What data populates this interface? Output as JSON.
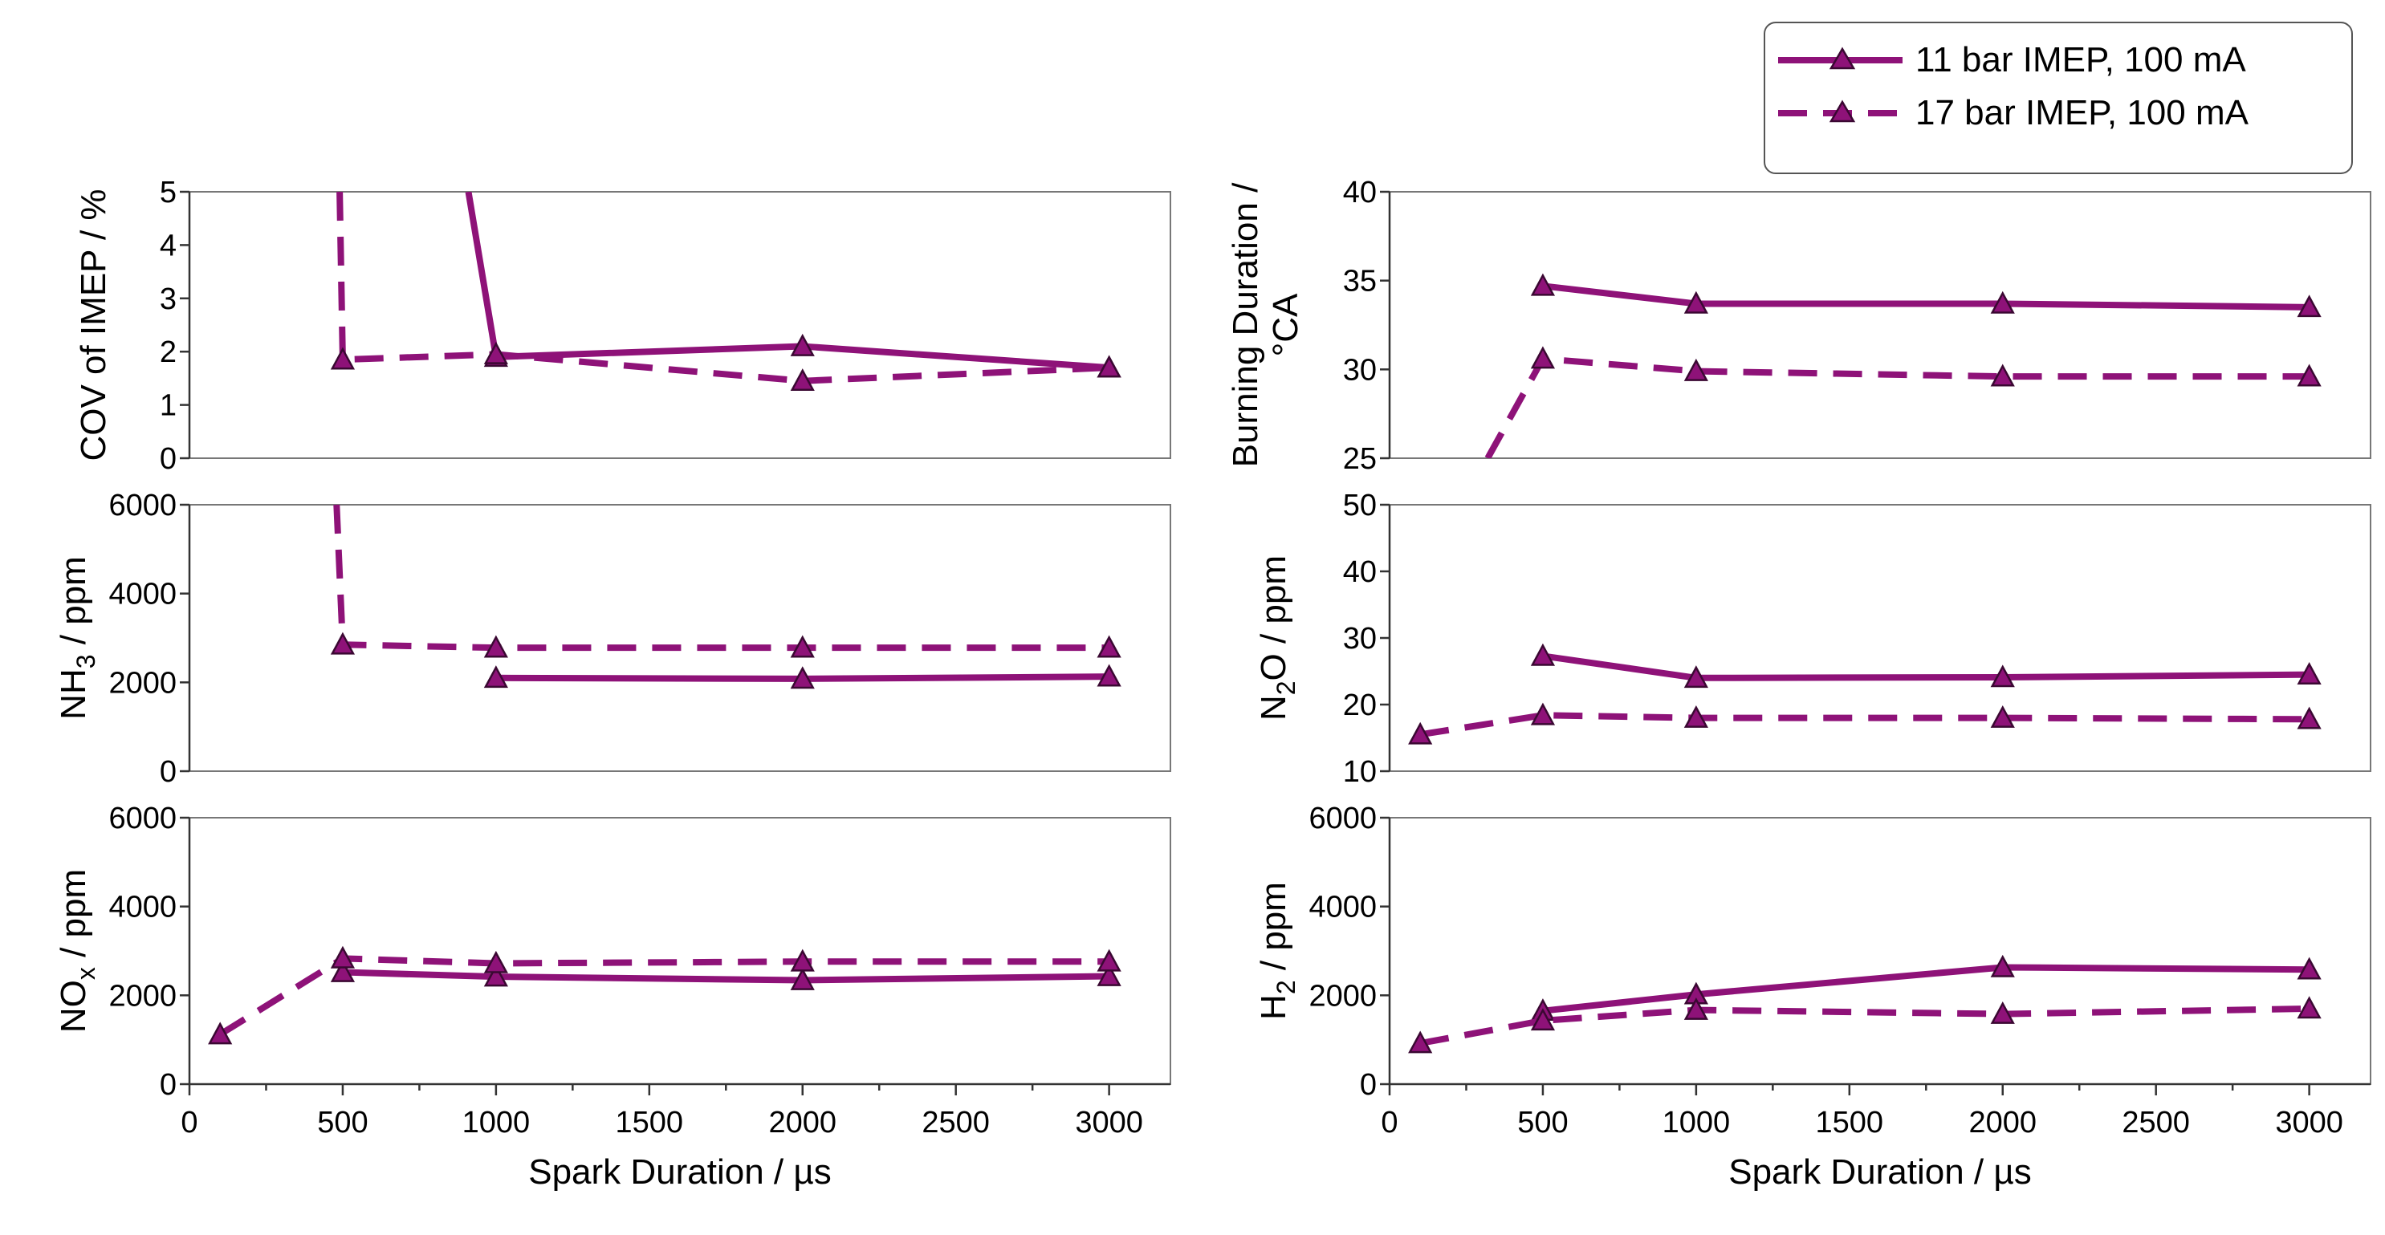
{
  "legend": {
    "entries": [
      {
        "label": "11 bar IMEP, 100 mA",
        "style": "solid"
      },
      {
        "label": "17 bar IMEP, 100 mA",
        "style": "dashed"
      }
    ]
  },
  "colors": {
    "series": "#8e1278",
    "marker_fill": "#8e1278",
    "marker_edge": "#3a0832"
  },
  "chart_data": [
    {
      "id": "cov",
      "type": "line",
      "column": "left",
      "row": 0,
      "ylabel": "COV of IMEP / %",
      "xlabel": "",
      "xlim": [
        0,
        3200
      ],
      "ylim": [
        0,
        5
      ],
      "yticks": [
        "0",
        "1",
        "2",
        "3",
        "4",
        "5"
      ],
      "ytick_values": [
        0,
        1,
        2,
        3,
        4,
        5
      ],
      "xticks": [],
      "xtick_values": [],
      "series": [
        {
          "name": "11 bar IMEP, 100 mA",
          "style": "solid",
          "x": [
            910,
            1000,
            2000,
            3000
          ],
          "y": [
            5.0,
            1.9,
            2.1,
            1.7
          ],
          "markers": [
            false,
            true,
            true,
            true
          ]
        },
        {
          "name": "17 bar IMEP, 100 mA",
          "style": "dashed",
          "x": [
            490,
            500,
            1000,
            2000,
            3000
          ],
          "y": [
            5.0,
            1.85,
            1.95,
            1.45,
            1.7
          ],
          "markers": [
            false,
            true,
            true,
            true,
            true
          ]
        }
      ]
    },
    {
      "id": "nh3",
      "type": "line",
      "column": "left",
      "row": 1,
      "ylabel": "NH3 / ppm",
      "ylabel_main": "NH",
      "ylabel_sub": "3",
      "ylabel_tail": " / ppm",
      "xlabel": "",
      "xlim": [
        0,
        3200
      ],
      "ylim": [
        0,
        6000
      ],
      "yticks": [
        "0",
        "2000",
        "4000",
        "6000"
      ],
      "ytick_values": [
        0,
        2000,
        4000,
        6000
      ],
      "xticks": [],
      "xtick_values": [],
      "series": [
        {
          "name": "11 bar IMEP, 100 mA",
          "style": "solid",
          "x": [
            1000,
            2000,
            3000
          ],
          "y": [
            2100,
            2080,
            2130
          ],
          "markers": [
            true,
            true,
            true
          ]
        },
        {
          "name": "17 bar IMEP, 100 mA",
          "style": "dashed",
          "x": [
            480,
            500,
            1000,
            2000,
            3000
          ],
          "y": [
            6000,
            2850,
            2780,
            2780,
            2780
          ],
          "markers": [
            false,
            true,
            true,
            true,
            true
          ]
        }
      ]
    },
    {
      "id": "nox",
      "type": "line",
      "column": "left",
      "row": 2,
      "ylabel": "NOx / ppm",
      "ylabel_main": "NO",
      "ylabel_sub": "x",
      "ylabel_tail": " / ppm",
      "xlabel": "Spark Duration / µs",
      "xlim": [
        0,
        3200
      ],
      "ylim": [
        0,
        6000
      ],
      "yticks": [
        "0",
        "2000",
        "4000",
        "6000"
      ],
      "ytick_values": [
        0,
        2000,
        4000,
        6000
      ],
      "xticks": [
        "0",
        "500",
        "1000",
        "1500",
        "2000",
        "2500",
        "3000"
      ],
      "xtick_values": [
        0,
        500,
        1000,
        1500,
        2000,
        2500,
        3000
      ],
      "series": [
        {
          "name": "11 bar IMEP, 100 mA",
          "style": "solid",
          "x": [
            500,
            1000,
            2000,
            3000
          ],
          "y": [
            2520,
            2420,
            2340,
            2430
          ],
          "markers": [
            true,
            true,
            true,
            true
          ]
        },
        {
          "name": "17 bar IMEP, 100 mA",
          "style": "dashed",
          "x": [
            100,
            500,
            1000,
            2000,
            3000
          ],
          "y": [
            1120,
            2830,
            2720,
            2760,
            2760
          ],
          "markers": [
            true,
            true,
            true,
            true,
            true
          ]
        }
      ]
    },
    {
      "id": "burn",
      "type": "line",
      "column": "right",
      "row": 0,
      "ylabel_lines": [
        "Burning Duration /",
        "°CA"
      ],
      "xlabel": "",
      "xlim": [
        0,
        3200
      ],
      "ylim": [
        25,
        40
      ],
      "yticks": [
        "25",
        "30",
        "35",
        "40"
      ],
      "ytick_values": [
        25,
        30,
        35,
        40
      ],
      "xticks": [],
      "xtick_values": [],
      "series": [
        {
          "name": "11 bar IMEP, 100 mA",
          "style": "solid",
          "x": [
            500,
            1000,
            2000,
            3000
          ],
          "y": [
            34.7,
            33.7,
            33.7,
            33.5
          ],
          "markers": [
            true,
            true,
            true,
            true
          ]
        },
        {
          "name": "17 bar IMEP, 100 mA",
          "style": "dashed",
          "x": [
            320,
            500,
            1000,
            2000,
            3000
          ],
          "y": [
            25.0,
            30.6,
            29.9,
            29.6,
            29.6
          ],
          "markers": [
            false,
            true,
            true,
            true,
            true
          ]
        }
      ]
    },
    {
      "id": "n2o",
      "type": "line",
      "column": "right",
      "row": 1,
      "ylabel": "N2O / ppm",
      "ylabel_main": "N",
      "ylabel_sub": "2",
      "ylabel_tail": "O / ppm",
      "xlabel": "",
      "xlim": [
        0,
        3200
      ],
      "ylim": [
        10,
        50
      ],
      "yticks": [
        "10",
        "20",
        "30",
        "40",
        "50"
      ],
      "ytick_values": [
        10,
        20,
        30,
        40,
        50
      ],
      "xticks": [],
      "xtick_values": [],
      "series": [
        {
          "name": "11 bar IMEP, 100 mA",
          "style": "solid",
          "x": [
            500,
            1000,
            2000,
            3000
          ],
          "y": [
            27.3,
            24.0,
            24.1,
            24.5
          ],
          "markers": [
            true,
            true,
            true,
            true
          ]
        },
        {
          "name": "17 bar IMEP, 100 mA",
          "style": "dashed",
          "x": [
            100,
            500,
            1000,
            2000,
            3000
          ],
          "y": [
            15.5,
            18.4,
            18.0,
            18.0,
            17.8
          ],
          "markers": [
            true,
            true,
            true,
            true,
            true
          ]
        }
      ]
    },
    {
      "id": "h2",
      "type": "line",
      "column": "right",
      "row": 2,
      "ylabel": "H2 / ppm",
      "ylabel_main": "H",
      "ylabel_sub": "2",
      "ylabel_tail": " / ppm",
      "xlabel": "Spark Duration / µs",
      "xlim": [
        0,
        3200
      ],
      "ylim": [
        0,
        6000
      ],
      "yticks": [
        "0",
        "2000",
        "4000",
        "6000"
      ],
      "ytick_values": [
        0,
        2000,
        4000,
        6000
      ],
      "xticks": [
        "0",
        "500",
        "1000",
        "1500",
        "2000",
        "2500",
        "3000"
      ],
      "xtick_values": [
        0,
        500,
        1000,
        1500,
        2000,
        2500,
        3000
      ],
      "series": [
        {
          "name": "11 bar IMEP, 100 mA",
          "style": "solid",
          "x": [
            500,
            1000,
            2000,
            3000
          ],
          "y": [
            1650,
            2020,
            2630,
            2580
          ],
          "markers": [
            true,
            true,
            true,
            true
          ]
        },
        {
          "name": "17 bar IMEP, 100 mA",
          "style": "dashed",
          "x": [
            100,
            500,
            1000,
            2000,
            3000
          ],
          "y": [
            920,
            1430,
            1670,
            1580,
            1700
          ],
          "markers": [
            true,
            true,
            true,
            true,
            true
          ]
        }
      ]
    }
  ]
}
